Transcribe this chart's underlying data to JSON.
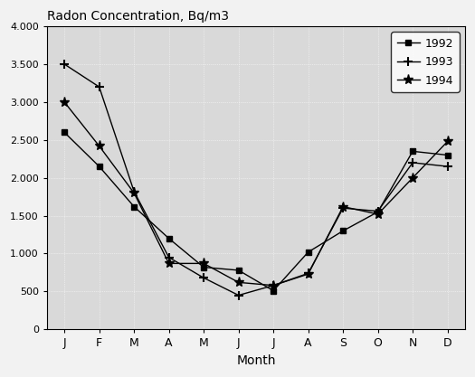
{
  "title": "Radon Concentration, Bq/m3",
  "xlabel": "Month",
  "months": [
    "J",
    "F",
    "M",
    "A",
    "M",
    "J",
    "J",
    "A",
    "S",
    "O",
    "N",
    "D"
  ],
  "series": {
    "1992": [
      2600,
      2150,
      1620,
      1200,
      820,
      780,
      510,
      1020,
      1300,
      1550,
      2350,
      2300
    ],
    "1993": [
      3500,
      3200,
      1820,
      950,
      680,
      450,
      580,
      740,
      1600,
      1560,
      2200,
      2150
    ],
    "1994": [
      3000,
      2420,
      1800,
      870,
      870,
      620,
      580,
      730,
      1620,
      1520,
      2000,
      2480
    ]
  },
  "ylim": [
    0,
    4000
  ],
  "yticks": [
    0,
    500,
    1000,
    1500,
    2000,
    2500,
    3000,
    3500,
    4000
  ],
  "ytick_labels": [
    "0",
    "500",
    "1.000",
    "1.500",
    "2.000",
    "2.500",
    "3.000",
    "3.500",
    "4.000"
  ],
  "plot_bg_color": "#d9d9d9",
  "fig_bg_color": "#f2f2f2",
  "line_color": "#000000",
  "legend_entries": [
    "1992",
    "1993",
    "1994"
  ]
}
